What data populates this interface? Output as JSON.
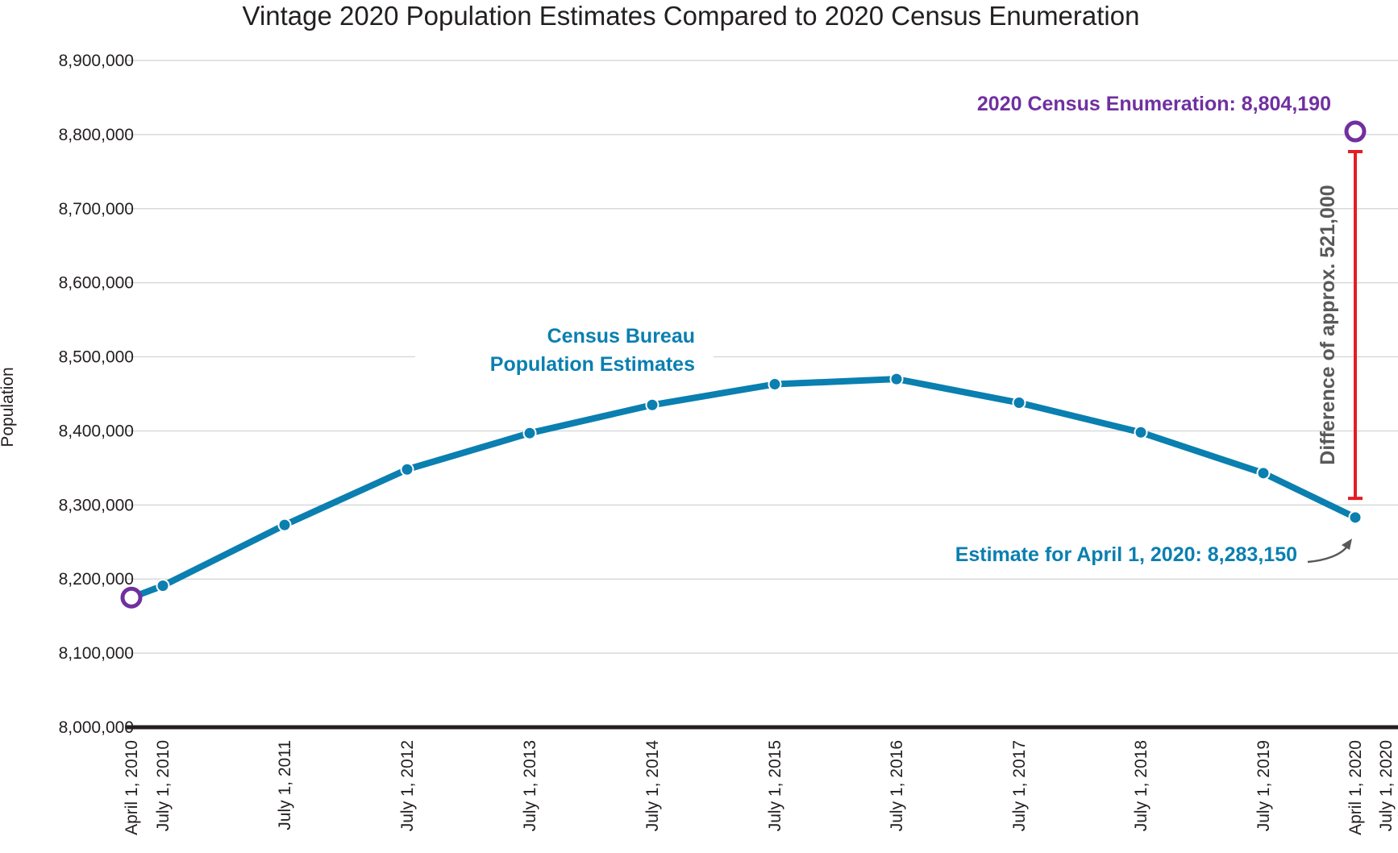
{
  "chart_data": {
    "type": "line",
    "title": "Vintage 2020 Population Estimates Compared to 2020 Census Enumeration",
    "xlabel": "",
    "ylabel": "Population",
    "ylim": [
      8000000,
      8900000
    ],
    "yticks": [
      "8,000,000",
      "8,100,000",
      "8,200,000",
      "8,300,000",
      "8,400,000",
      "8,500,000",
      "8,600,000",
      "8,700,000",
      "8,800,000",
      "8,900,000"
    ],
    "x": [
      "April 1, 2010",
      "July 1, 2010",
      "July 1, 2011",
      "July 1, 2012",
      "July 1, 2013",
      "July 1, 2014",
      "July 1, 2015",
      "July 1, 2016",
      "July 1, 2017",
      "July 1, 2018",
      "July 1, 2019",
      "April 1, 2020",
      "July 1, 2020"
    ],
    "grid": true,
    "series": [
      {
        "name": "Census Bureau Population Estimates",
        "color": "#0a7fb0",
        "points": [
          {
            "x": "April 1, 2010",
            "y": 8175000
          },
          {
            "x": "July 1, 2010",
            "y": 8191000
          },
          {
            "x": "July 1, 2011",
            "y": 8273000
          },
          {
            "x": "July 1, 2012",
            "y": 8348000
          },
          {
            "x": "July 1, 2013",
            "y": 8397000
          },
          {
            "x": "July 1, 2014",
            "y": 8435000
          },
          {
            "x": "July 1, 2015",
            "y": 8463000
          },
          {
            "x": "July 1, 2016",
            "y": 8470000
          },
          {
            "x": "July 1, 2017",
            "y": 8438000
          },
          {
            "x": "July 1, 2018",
            "y": 8398000
          },
          {
            "x": "July 1, 2019",
            "y": 8343000
          },
          {
            "x": "April 1, 2020",
            "y": 8283150
          }
        ]
      }
    ],
    "census_points": [
      {
        "x": "April 1, 2010",
        "y": 8175000
      },
      {
        "x": "April 1, 2020",
        "y": 8804190
      }
    ],
    "annotations": {
      "series_label_line1": "Census Bureau",
      "series_label_line2": "Population Estimates",
      "census_label": "2020 Census Enumeration: 8,804,190",
      "estimate_label": "Estimate for April 1, 2020: 8,283,150",
      "difference_label": "Difference of  approx. 521,000"
    },
    "colors": {
      "estimate": "#0a7fb0",
      "census": "#7030a0",
      "difference": "#e31e24",
      "difference_text": "#595959",
      "axis": "#231f20",
      "grid": "#d9d9d9"
    }
  }
}
